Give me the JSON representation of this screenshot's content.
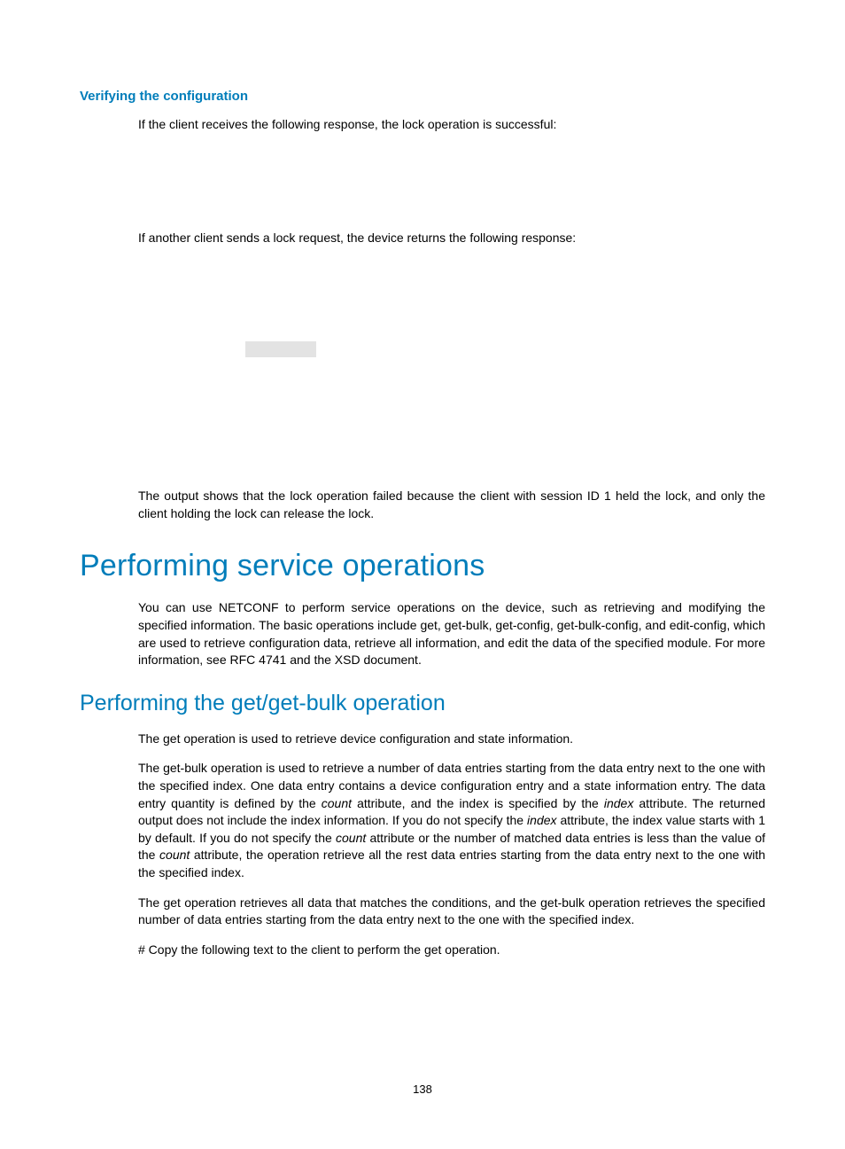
{
  "colors": {
    "heading": "#007dba",
    "body_text": "#000000",
    "background": "#ffffff",
    "grey_box": "#e3e3e3"
  },
  "typography": {
    "h1_fontsize": 34,
    "h2_fontsize": 25,
    "h4_fontsize": 15,
    "body_fontsize": 14,
    "font_family": "Arial, Helvetica, sans-serif"
  },
  "section1": {
    "heading": "Verifying the configuration",
    "p1": "If the client receives the following response, the lock operation is successful:",
    "p2": "If another client sends a lock request, the device returns the following response:",
    "p3": "The output shows that the lock operation failed because the client with session ID 1 held the lock, and only the client holding the lock can release the lock."
  },
  "section2": {
    "heading": "Performing service operations",
    "p1": "You can use NETCONF to perform service operations on the device, such as retrieving and modifying the specified information. The basic operations include get, get-bulk, get-config, get-bulk-config, and edit-config, which are used to retrieve configuration data, retrieve all information, and edit the data of the specified module. For more information, see RFC 4741 and the XSD document."
  },
  "section3": {
    "heading": "Performing the get/get-bulk operation",
    "p1": "The get operation is used to retrieve device configuration and state information.",
    "p2_a": "The get-bulk operation is used to retrieve a number of data entries starting from the data entry next to the one with the specified index. One data entry contains a device configuration entry and a state information entry. The data entry quantity is defined by the ",
    "p2_count1": "count",
    "p2_b": " attribute, and the index is specified by the ",
    "p2_index1": "index",
    "p2_c": " attribute. The returned output does not include the index information. If you do not specify the ",
    "p2_index2": "index",
    "p2_d": " attribute, the index value starts with 1 by default. If you do not specify the ",
    "p2_count2": "count",
    "p2_e": " attribute or the number of matched data entries is less than the value of the ",
    "p2_count3": "count",
    "p2_f": " attribute, the operation retrieve all the rest data entries starting from the data entry next to the one with the specified index.",
    "p3": "The get operation retrieves all data that matches the conditions, and the get-bulk operation retrieves the specified number of data entries starting from the data entry next to the one with the specified index.",
    "p4": "# Copy the following text to the client to perform the get operation."
  },
  "page_number": "138"
}
